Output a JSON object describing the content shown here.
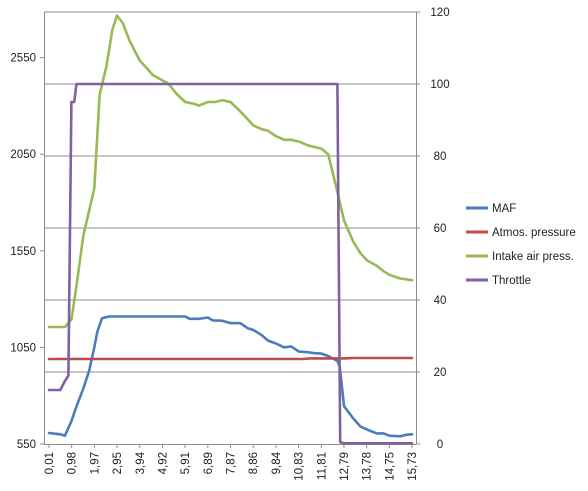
{
  "chart_data": {
    "type": "line",
    "title": "",
    "xlabel": "",
    "ylabel": "",
    "y2label": "",
    "grid": true,
    "legend_position": "right",
    "x_tick_labels": [
      "0,01",
      "0,98",
      "1,97",
      "2,95",
      "3,94",
      "4,92",
      "5,91",
      "6,89",
      "7,87",
      "8,86",
      "9,84",
      "10,83",
      "11,81",
      "12,79",
      "13,78",
      "14,75",
      "15,73"
    ],
    "x_range": [
      0.01,
      15.73
    ],
    "y_left": {
      "range": [
        550,
        2786
      ],
      "ticks": [
        "550",
        "1050",
        "1550",
        "2050",
        "2550"
      ],
      "tick_values": [
        550,
        1050,
        1550,
        2050,
        2550
      ]
    },
    "y_right": {
      "range": [
        0,
        120
      ],
      "ticks": [
        "0",
        "20",
        "40",
        "60",
        "80",
        "100",
        "120"
      ],
      "tick_values": [
        0,
        20,
        40,
        60,
        80,
        100,
        120
      ]
    },
    "series": [
      {
        "name": "MAF",
        "color": "#4a7ebb",
        "axis": "left",
        "points": [
          [
            0.01,
            607
          ],
          [
            0.5,
            600
          ],
          [
            0.7,
            593
          ],
          [
            0.98,
            668
          ],
          [
            1.2,
            745
          ],
          [
            1.5,
            838
          ],
          [
            1.75,
            930
          ],
          [
            1.97,
            1050
          ],
          [
            2.1,
            1130
          ],
          [
            2.3,
            1200
          ],
          [
            2.6,
            1210
          ],
          [
            2.95,
            1210
          ],
          [
            3.5,
            1210
          ],
          [
            3.94,
            1210
          ],
          [
            4.5,
            1210
          ],
          [
            4.92,
            1210
          ],
          [
            5.5,
            1210
          ],
          [
            5.91,
            1210
          ],
          [
            6.1,
            1198
          ],
          [
            6.5,
            1198
          ],
          [
            6.89,
            1205
          ],
          [
            7.1,
            1190
          ],
          [
            7.5,
            1188
          ],
          [
            7.87,
            1176
          ],
          [
            8.3,
            1175
          ],
          [
            8.6,
            1150
          ],
          [
            8.86,
            1140
          ],
          [
            9.2,
            1115
          ],
          [
            9.5,
            1085
          ],
          [
            9.84,
            1070
          ],
          [
            10.2,
            1050
          ],
          [
            10.5,
            1055
          ],
          [
            10.83,
            1028
          ],
          [
            11.2,
            1025
          ],
          [
            11.5,
            1020
          ],
          [
            11.81,
            1018
          ],
          [
            12.1,
            1005
          ],
          [
            12.5,
            980
          ],
          [
            12.6,
            950
          ],
          [
            12.79,
            745
          ],
          [
            13.2,
            680
          ],
          [
            13.5,
            640
          ],
          [
            13.78,
            625
          ],
          [
            14.2,
            605
          ],
          [
            14.5,
            605
          ],
          [
            14.75,
            593
          ],
          [
            15.2,
            590
          ],
          [
            15.5,
            598
          ],
          [
            15.73,
            600
          ]
        ]
      },
      {
        "name": "Atmos. pressure",
        "color": "#be4b48",
        "axis": "left",
        "points": [
          [
            0.01,
            990
          ],
          [
            1.97,
            990
          ],
          [
            3.94,
            990
          ],
          [
            5.91,
            990
          ],
          [
            7.87,
            990
          ],
          [
            9.84,
            990
          ],
          [
            11.0,
            990
          ],
          [
            11.3,
            993
          ],
          [
            12.79,
            993
          ],
          [
            13.2,
            995
          ],
          [
            14.75,
            995
          ],
          [
            15.73,
            995
          ]
        ]
      },
      {
        "name": "Intake air press.",
        "color": "#98b954",
        "axis": "right",
        "points": [
          [
            0.01,
            32.5
          ],
          [
            0.7,
            32.5
          ],
          [
            0.98,
            34.5
          ],
          [
            1.2,
            44
          ],
          [
            1.5,
            58
          ],
          [
            1.97,
            71
          ],
          [
            2.2,
            97
          ],
          [
            2.5,
            105
          ],
          [
            2.75,
            115
          ],
          [
            2.95,
            119
          ],
          [
            3.2,
            117
          ],
          [
            3.5,
            112
          ],
          [
            3.94,
            106.5
          ],
          [
            4.3,
            104
          ],
          [
            4.5,
            102.5
          ],
          [
            4.92,
            101
          ],
          [
            5.2,
            100
          ],
          [
            5.5,
            97.5
          ],
          [
            5.91,
            95
          ],
          [
            6.3,
            94.5
          ],
          [
            6.5,
            94
          ],
          [
            6.89,
            95
          ],
          [
            7.2,
            95
          ],
          [
            7.5,
            95.5
          ],
          [
            7.87,
            95
          ],
          [
            8.2,
            93
          ],
          [
            8.5,
            91
          ],
          [
            8.86,
            88.5
          ],
          [
            9.2,
            87.5
          ],
          [
            9.5,
            87
          ],
          [
            9.84,
            85.5
          ],
          [
            10.2,
            84.5
          ],
          [
            10.5,
            84.5
          ],
          [
            10.83,
            84
          ],
          [
            11.2,
            83
          ],
          [
            11.5,
            82.5
          ],
          [
            11.81,
            82
          ],
          [
            12.1,
            80.5
          ],
          [
            12.5,
            70
          ],
          [
            12.79,
            62
          ],
          [
            13.2,
            56
          ],
          [
            13.5,
            53
          ],
          [
            13.78,
            51
          ],
          [
            14.2,
            49.5
          ],
          [
            14.5,
            48
          ],
          [
            14.75,
            47
          ],
          [
            15.2,
            46
          ],
          [
            15.73,
            45.5
          ]
        ]
      },
      {
        "name": "Throttle",
        "color": "#7e62a1",
        "axis": "right",
        "points": [
          [
            0.01,
            15
          ],
          [
            0.5,
            15
          ],
          [
            0.7,
            17.5
          ],
          [
            0.85,
            19
          ],
          [
            0.98,
            95
          ],
          [
            1.1,
            95
          ],
          [
            1.2,
            100
          ],
          [
            1.97,
            100
          ],
          [
            3.94,
            100
          ],
          [
            5.91,
            100
          ],
          [
            7.87,
            100
          ],
          [
            9.84,
            100
          ],
          [
            11.81,
            100
          ],
          [
            12.4,
            100
          ],
          [
            12.5,
            100
          ],
          [
            12.62,
            0.5
          ],
          [
            12.79,
            0.2
          ],
          [
            13.78,
            0.2
          ],
          [
            14.75,
            0.2
          ],
          [
            15.73,
            0.2
          ]
        ]
      }
    ]
  }
}
